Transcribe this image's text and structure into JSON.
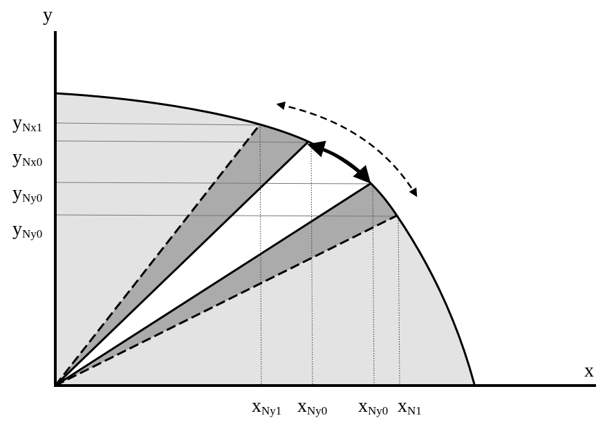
{
  "axes": {
    "y": "y",
    "x": "x"
  },
  "y_labels": [
    {
      "main": "y",
      "sub": "Nx1"
    },
    {
      "main": "y",
      "sub": "Nx0"
    },
    {
      "main": "y",
      "sub": "Ny0"
    },
    {
      "main": "y",
      "sub": "Ny0"
    }
  ],
  "x_labels": [
    {
      "main": "x",
      "sub": "Ny1"
    },
    {
      "main": "x",
      "sub": "Ny0"
    },
    {
      "main": "x",
      "sub": "Ny0"
    },
    {
      "main": "x",
      "sub": "N1"
    }
  ]
}
